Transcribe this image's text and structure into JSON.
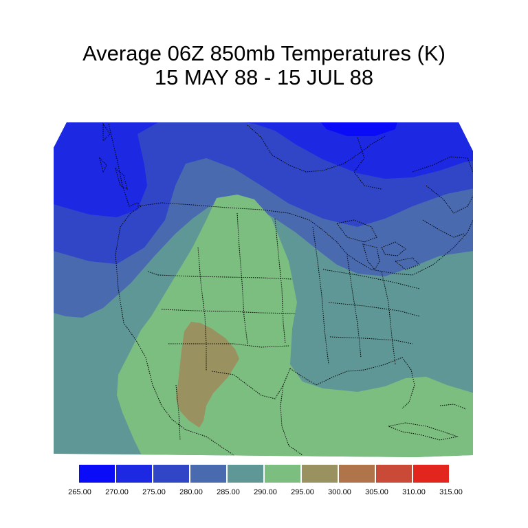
{
  "title": {
    "line1": "Average 06Z 850mb Temperatures (K)",
    "line2": "15 MAY 88 - 15 JUL 88"
  },
  "legend": {
    "colors": [
      "#0b0cf7",
      "#1d28e3",
      "#3046c6",
      "#4a6ab0",
      "#5f9797",
      "#7cbd80",
      "#9a9161",
      "#b0744a",
      "#c94a36",
      "#e2261d"
    ],
    "ticks": [
      "265.00",
      "270.00",
      "275.00",
      "280.00",
      "285.00",
      "290.00",
      "295.00",
      "300.00",
      "305.00",
      "310.00",
      "315.00"
    ]
  },
  "map": {
    "region": "North America",
    "projection": "lambert conformal",
    "field": "850mb temperature (K)",
    "band_colors": {
      "265_270": "#0b0cf7",
      "270_275": "#1d28e3",
      "275_280": "#3046c6",
      "280_285": "#4a6ab0",
      "285_290": "#5f9797",
      "290_295": "#7cbd80",
      "295_300": "#9a9161"
    }
  }
}
